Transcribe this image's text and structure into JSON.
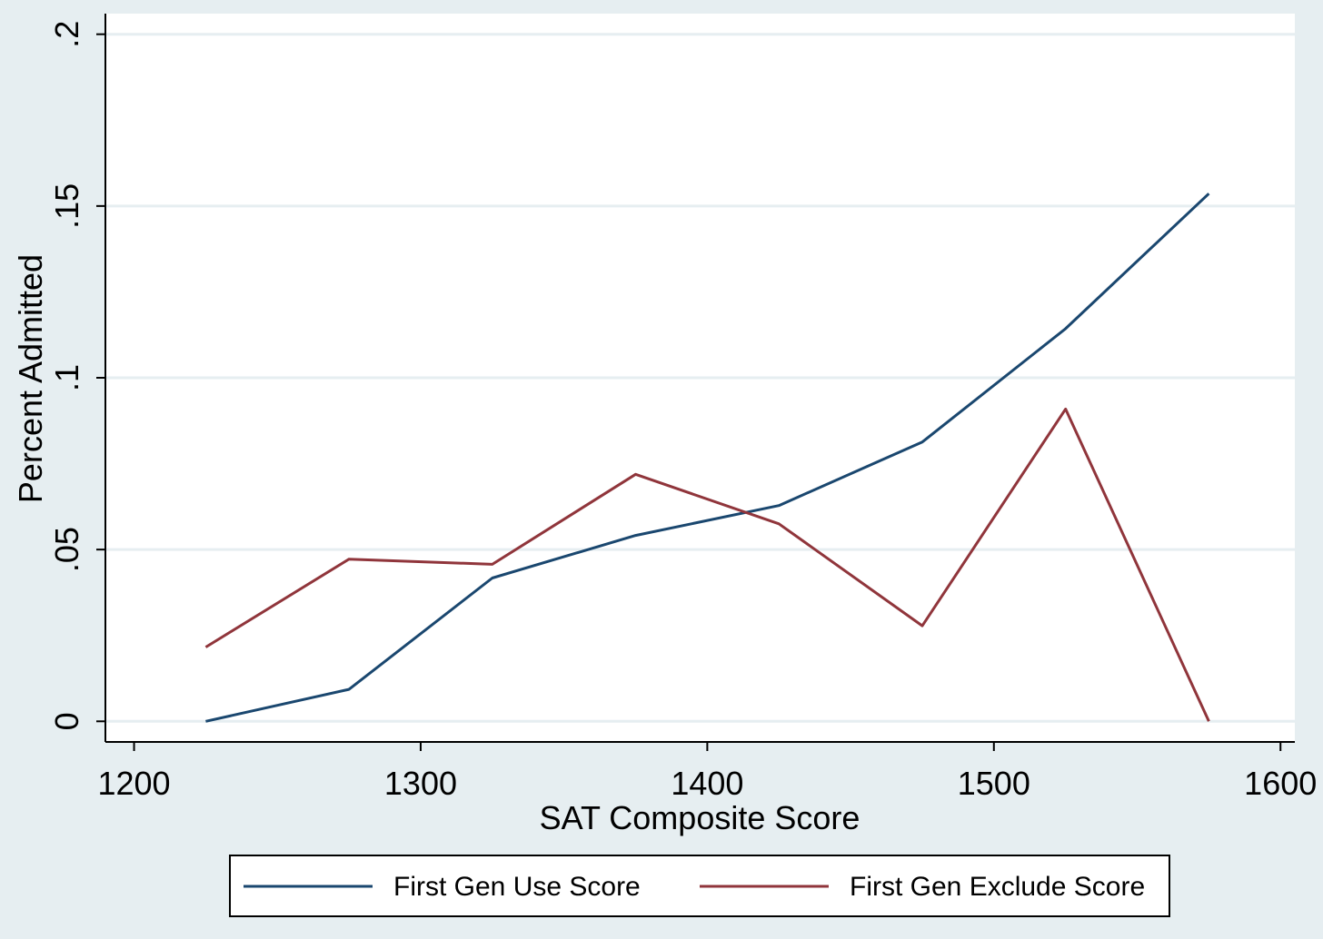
{
  "chart_data": {
    "type": "line",
    "title": "",
    "xlabel": "SAT Composite Score",
    "ylabel": "Percent Admitted",
    "xlim": [
      1190,
      1605
    ],
    "ylim": [
      -0.006,
      0.206
    ],
    "xticks": [
      1200,
      1300,
      1400,
      1500,
      1600
    ],
    "xtick_labels": [
      "1200",
      "1300",
      "1400",
      "1500",
      "1600"
    ],
    "yticks": [
      0,
      0.05,
      0.1,
      0.15,
      0.2
    ],
    "ytick_labels": [
      "0",
      ".05",
      ".1",
      ".15",
      ".2"
    ],
    "grid": "horizontal",
    "legend_position": "bottom",
    "series": [
      {
        "name": "First Gen Use Score",
        "color": "#1a476f",
        "x": [
          1225,
          1275,
          1325,
          1375,
          1425,
          1475,
          1525,
          1575
        ],
        "y": [
          0.0,
          0.0093,
          0.0417,
          0.0541,
          0.0628,
          0.0813,
          0.1143,
          0.1536
        ]
      },
      {
        "name": "First Gen Exclude Score",
        "color": "#90353b",
        "x": [
          1225,
          1275,
          1325,
          1375,
          1425,
          1475,
          1525,
          1575
        ],
        "y": [
          0.0216,
          0.0472,
          0.0457,
          0.0719,
          0.0575,
          0.0278,
          0.0909,
          0.0
        ]
      }
    ]
  },
  "colors": {
    "background": "#e6eef1",
    "plot_bg": "#ffffff",
    "grid": "#e6eef1"
  }
}
